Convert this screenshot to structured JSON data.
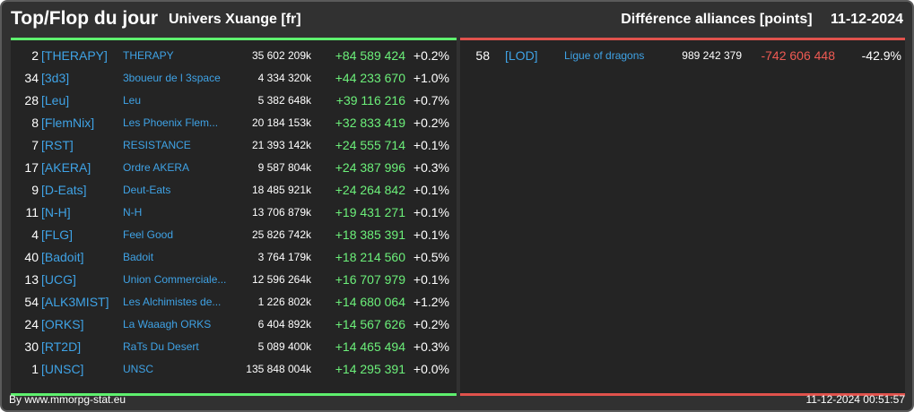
{
  "header": {
    "title": "Top/Flop du jour",
    "universe": "Univers Xuange [fr]",
    "subtitle": "Différence alliances [points]",
    "date": "11-12-2024"
  },
  "colors": {
    "gain": "#6cf07a",
    "loss": "#ef5a53",
    "link": "#3fa3e6",
    "top_bar": "#5ef06e",
    "flop_bar": "#e0524c"
  },
  "top": [
    {
      "rank": "2",
      "tag": "[THERAPY]",
      "name": "THERAPY",
      "points": "35 602 209k",
      "diff": "+84 589 424",
      "pct": "+0.2%"
    },
    {
      "rank": "34",
      "tag": "[3d3]",
      "name": "3boueur de l 3space",
      "points": "4 334 320k",
      "diff": "+44 233 670",
      "pct": "+1.0%"
    },
    {
      "rank": "28",
      "tag": "[Leu]",
      "name": "Leu",
      "points": "5 382 648k",
      "diff": "+39 116 216",
      "pct": "+0.7%"
    },
    {
      "rank": "8",
      "tag": "[FlemNix]",
      "name": "Les Phoenix Flem...",
      "points": "20 184 153k",
      "diff": "+32 833 419",
      "pct": "+0.2%"
    },
    {
      "rank": "7",
      "tag": "[RST]",
      "name": "RESISTANCE",
      "points": "21 393 142k",
      "diff": "+24 555 714",
      "pct": "+0.1%"
    },
    {
      "rank": "17",
      "tag": "[AKERA]",
      "name": "Ordre AKERA",
      "points": "9 587 804k",
      "diff": "+24 387 996",
      "pct": "+0.3%"
    },
    {
      "rank": "9",
      "tag": "[D-Eats]",
      "name": "Deut-Eats",
      "points": "18 485 921k",
      "diff": "+24 264 842",
      "pct": "+0.1%"
    },
    {
      "rank": "11",
      "tag": "[N-H]",
      "name": "N-H",
      "points": "13 706 879k",
      "diff": "+19 431 271",
      "pct": "+0.1%"
    },
    {
      "rank": "4",
      "tag": "[FLG]",
      "name": "Feel Good",
      "points": "25 826 742k",
      "diff": "+18 385 391",
      "pct": "+0.1%"
    },
    {
      "rank": "40",
      "tag": "[Badoit]",
      "name": "Badoit",
      "points": "3 764 179k",
      "diff": "+18 214 560",
      "pct": "+0.5%"
    },
    {
      "rank": "13",
      "tag": "[UCG]",
      "name": "Union Commerciale...",
      "points": "12 596 264k",
      "diff": "+16 707 979",
      "pct": "+0.1%"
    },
    {
      "rank": "54",
      "tag": "[ALK3MIST]",
      "name": "Les Alchimistes de...",
      "points": "1 226 802k",
      "diff": "+14 680 064",
      "pct": "+1.2%"
    },
    {
      "rank": "24",
      "tag": "[ORKS]",
      "name": "La Waaagh ORKS",
      "points": "6 404 892k",
      "diff": "+14 567 626",
      "pct": "+0.2%"
    },
    {
      "rank": "30",
      "tag": "[RT2D]",
      "name": "RaTs Du Desert",
      "points": "5 089 400k",
      "diff": "+14 465 494",
      "pct": "+0.3%"
    },
    {
      "rank": "1",
      "tag": "[UNSC]",
      "name": "UNSC",
      "points": "135 848 004k",
      "diff": "+14 295 391",
      "pct": "+0.0%"
    }
  ],
  "flop": [
    {
      "rank": "58",
      "tag": "[LOD]",
      "name": "Ligue of dragons",
      "points": "989 242 379",
      "diff": "-742 606 448",
      "pct": "-42.9%"
    }
  ],
  "footer": {
    "credit": "By www.mmorpg-stat.eu",
    "timestamp": "11-12-2024 00:51:57"
  }
}
